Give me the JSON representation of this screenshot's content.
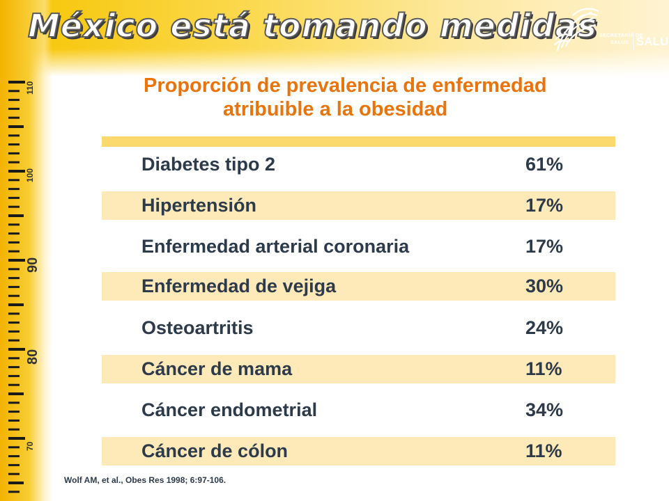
{
  "slide": {
    "title": "México está tomando medidas",
    "logo": {
      "line1": "SECRETARÍA DE",
      "line2": "SALUD",
      "name": "SALUD",
      "icon": "eagle-emblem-icon"
    }
  },
  "ruler": {
    "labels": [
      "110",
      "100",
      "90",
      "80",
      "70"
    ]
  },
  "table": {
    "title_line1": "Proporción de prevalencia de enfermedad",
    "title_line2": "atribuible a la obesidad",
    "rows": [
      {
        "condition": "Diabetes tipo 2",
        "percent": "61%"
      },
      {
        "condition": "Hipertensión",
        "percent": "17%"
      },
      {
        "condition": "Enfermedad arterial coronaria",
        "percent": "17%"
      },
      {
        "condition": "Enfermedad de vejiga",
        "percent": "30%"
      },
      {
        "condition": "Osteoartritis",
        "percent": "24%"
      },
      {
        "condition": "Cáncer de mama",
        "percent": "11%"
      },
      {
        "condition": "Cáncer endometrial",
        "percent": "34%"
      },
      {
        "condition": "Cáncer de cólon",
        "percent": "11%"
      }
    ]
  },
  "citation": "Wolf AM, et al., Obes Res 1998; 6:97-106.",
  "colors": {
    "title_orange": "#e8740b",
    "row_shade": "#fee9b8",
    "text_dark": "#2c3a4a"
  }
}
